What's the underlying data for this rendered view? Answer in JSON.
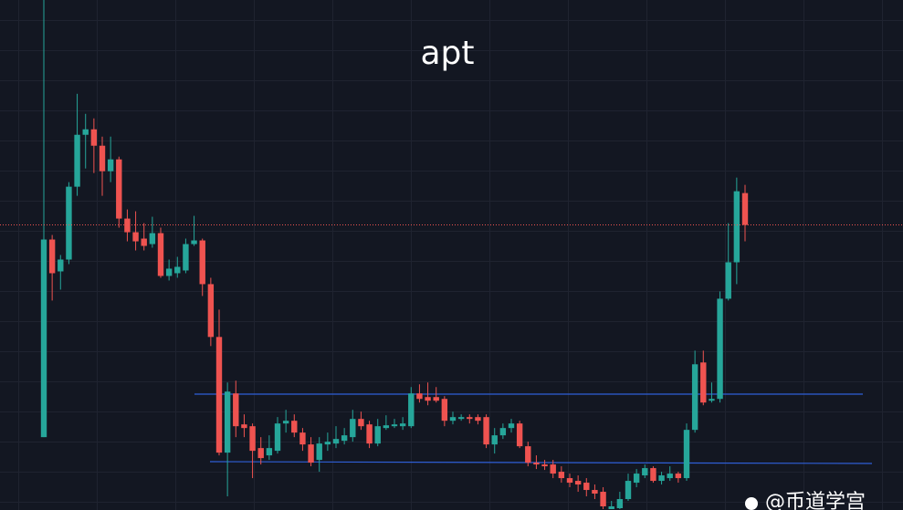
{
  "chart_data": {
    "type": "candlestick",
    "title": "apt",
    "open": [
      80,
      297,
      262,
      275,
      355,
      412,
      418,
      400,
      372,
      385,
      320,
      305,
      298,
      292,
      304,
      257,
      260,
      263,
      292,
      296,
      248,
      190,
      63,
      128,
      94,
      92,
      68,
      60,
      65,
      95,
      98,
      85,
      72,
      55,
      72,
      73,
      76,
      80,
      100,
      94,
      73,
      90,
      92,
      92,
      92,
      128,
      124,
      124,
      122,
      98,
      100,
      102,
      102,
      102,
      72,
      82,
      90,
      95,
      70,
      52,
      50,
      50,
      42,
      35,
      32,
      30,
      22,
      20,
      1,
      2,
      12,
      30,
      38,
      46,
      32,
      35,
      40,
      35,
      88,
      162,
      120,
      122,
      232,
      272,
      348
    ],
    "high": [
      560,
      302,
      280,
      360,
      457,
      435,
      430,
      410,
      410,
      388,
      330,
      328,
      315,
      322,
      310,
      275,
      278,
      298,
      323,
      298,
      255,
      220,
      140,
      142,
      105,
      95,
      80,
      82,
      102,
      110,
      105,
      90,
      80,
      80,
      85,
      92,
      90,
      110,
      108,
      98,
      100,
      104,
      100,
      102,
      135,
      138,
      140,
      135,
      125,
      108,
      105,
      105,
      105,
      105,
      90,
      95,
      100,
      98,
      75,
      60,
      55,
      55,
      48,
      40,
      38,
      35,
      28,
      25,
      10,
      20,
      40,
      45,
      50,
      48,
      42,
      48,
      42,
      95,
      175,
      175,
      140,
      240,
      315,
      365,
      357
    ],
    "low": [
      80,
      230,
      242,
      270,
      345,
      375,
      370,
      345,
      360,
      310,
      295,
      285,
      285,
      288,
      255,
      252,
      255,
      260,
      290,
      235,
      180,
      60,
      15,
      80,
      80,
      35,
      50,
      55,
      62,
      85,
      80,
      65,
      48,
      42,
      65,
      68,
      72,
      75,
      88,
      68,
      70,
      88,
      90,
      88,
      90,
      118,
      115,
      118,
      92,
      94,
      98,
      95,
      94,
      68,
      62,
      78,
      85,
      68,
      48,
      45,
      44,
      35,
      30,
      25,
      20,
      15,
      12,
      1,
      1,
      1,
      10,
      25,
      35,
      30,
      28,
      32,
      30,
      32,
      85,
      115,
      118,
      118,
      230,
      248,
      295
    ],
    "close": [
      297,
      260,
      275,
      355,
      412,
      418,
      400,
      372,
      385,
      320,
      305,
      295,
      290,
      304,
      257,
      265,
      267,
      292,
      296,
      248,
      190,
      63,
      130,
      92,
      90,
      65,
      57,
      68,
      95,
      98,
      85,
      72,
      52,
      73,
      75,
      78,
      82,
      100,
      92,
      73,
      92,
      93,
      94,
      95,
      128,
      122,
      120,
      120,
      98,
      102,
      102,
      100,
      98,
      72,
      82,
      90,
      95,
      70,
      52,
      50,
      48,
      40,
      35,
      30,
      28,
      22,
      18,
      4,
      4,
      12,
      32,
      40,
      46,
      32,
      38,
      40,
      35,
      88,
      160,
      118,
      122,
      232,
      272,
      350,
      313
    ],
    "ylim": [
      0,
      560
    ],
    "up_color": "#26a69a",
    "down_color": "#ef5350",
    "last_price_line": true
  },
  "watermark": "@币道学宫"
}
